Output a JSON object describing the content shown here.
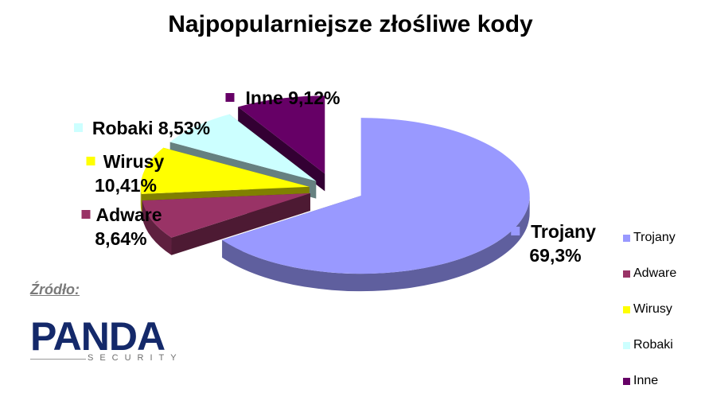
{
  "chart_data": {
    "type": "pie",
    "title": "Najpopularniejsze złośliwe kody",
    "exploded": true,
    "three_d": true,
    "legend_position": "right",
    "slices": [
      {
        "name": "Trojany",
        "value": 69.3,
        "label": [
          "Trojany",
          "69,3%"
        ],
        "color": "#9999ff"
      },
      {
        "name": "Adware",
        "value": 8.64,
        "label": [
          "Adware",
          "8,64%"
        ],
        "color": "#993366"
      },
      {
        "name": "Wirusy",
        "value": 10.41,
        "label": [
          "Wirusy",
          "10,41%"
        ],
        "color": "#ffff00"
      },
      {
        "name": "Robaki",
        "value": 8.53,
        "label": [
          "Robaki 8,53%"
        ],
        "color": "#ccffff"
      },
      {
        "name": "Inne",
        "value": 9.12,
        "label": [
          "Inne 9,12%"
        ],
        "color": "#660066"
      }
    ]
  },
  "source": {
    "label": "Źródło:",
    "logo_text": "PANDA",
    "logo_subtext": "SECURITY"
  }
}
